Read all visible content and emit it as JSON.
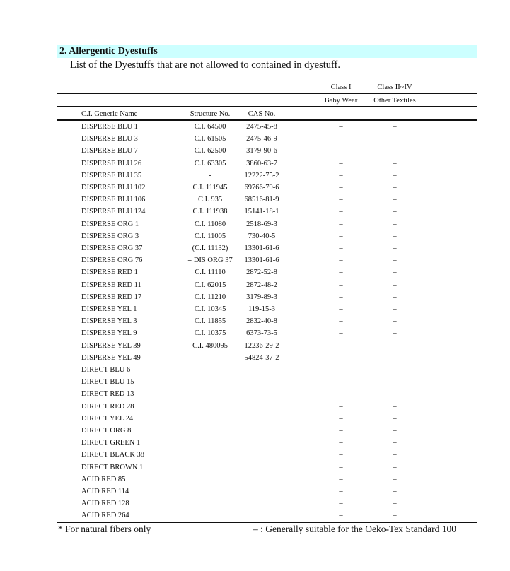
{
  "section": {
    "title": "2. Allergentic Dyestuffs",
    "intro": "List of the Dyestuffs that are not allowed to contained in dyestuff.",
    "band_color": "#ccffff"
  },
  "table": {
    "class_headers": [
      "Class I",
      "Class II~IV"
    ],
    "class_subheaders": [
      "Baby Wear",
      "Other Textiles"
    ],
    "columns": [
      "C.I. Generic Name",
      "Structure No.",
      "CAS No."
    ],
    "rows": [
      [
        "DISPERSE BLU 1",
        "C.I. 64500",
        "2475-45-8",
        "–",
        "–"
      ],
      [
        "DISPERSE BLU 3",
        "C.I. 61505",
        "2475-46-9",
        "–",
        "–"
      ],
      [
        "DISPERSE BLU 7",
        "C.I. 62500",
        "3179-90-6",
        "–",
        "–"
      ],
      [
        "DISPERSE BLU 26",
        "C.I. 63305",
        "3860-63-7",
        "–",
        "–"
      ],
      [
        "DISPERSE BLU 35",
        "-",
        "12222-75-2",
        "–",
        "–"
      ],
      [
        "DISPERSE BLU 102",
        "C.I. 111945",
        "69766-79-6",
        "–",
        "–"
      ],
      [
        "DISPERSE BLU 106",
        "C.I. 935",
        "68516-81-9",
        "–",
        "–"
      ],
      [
        "DISPERSE BLU 124",
        "C.I. 111938",
        "15141-18-1",
        "–",
        "–"
      ],
      [
        "DISPERSE ORG 1",
        "C.I. 11080",
        "2518-69-3",
        "–",
        "–"
      ],
      [
        "DISPERSE ORG 3",
        "C.I. 11005",
        "730-40-5",
        "–",
        "–"
      ],
      [
        "DISPERSE ORG 37",
        "(C.I. 11132)",
        "13301-61-6",
        "–",
        "–"
      ],
      [
        "DISPERSE ORG 76",
        "= DIS ORG 37",
        "13301-61-6",
        "–",
        "–"
      ],
      [
        "DISPERSE RED 1",
        "C.I. 11110",
        "2872-52-8",
        "–",
        "–"
      ],
      [
        "DISPERSE RED 11",
        "C.I. 62015",
        "2872-48-2",
        "–",
        "–"
      ],
      [
        "DISPERSE RED 17",
        "C.I. 11210",
        "3179-89-3",
        "–",
        "–"
      ],
      [
        "DISPERSE YEL 1",
        "C.I. 10345",
        "119-15-3",
        "–",
        "–"
      ],
      [
        "DISPERSE YEL 3",
        "C.I. 11855",
        "2832-40-8",
        "–",
        "–"
      ],
      [
        "DISPERSE YEL 9",
        "C.I. 10375",
        "6373-73-5",
        "–",
        "–"
      ],
      [
        "DISPERSE YEL 39",
        "C.I. 480095",
        "12236-29-2",
        "–",
        "–"
      ],
      [
        "DISPERSE YEL 49",
        "-",
        "54824-37-2",
        "–",
        "–"
      ],
      [
        "DIRECT BLU 6",
        "",
        "",
        "–",
        "–"
      ],
      [
        "DIRECT BLU 15",
        "",
        "",
        "–",
        "–"
      ],
      [
        "DIRECT RED 13",
        "",
        "",
        "–",
        "–"
      ],
      [
        "DIRECT RED 28",
        "",
        "",
        "–",
        "–"
      ],
      [
        "DIRECT YEL 24",
        "",
        "",
        "–",
        "–"
      ],
      [
        "DIRECT ORG 8",
        "",
        "",
        "–",
        "–"
      ],
      [
        "DIRECT GREEN 1",
        "",
        "",
        "–",
        "–"
      ],
      [
        "DIRECT BLACK 38",
        "",
        "",
        "–",
        "–"
      ],
      [
        "DIRECT BROWN 1",
        "",
        "",
        "–",
        "–"
      ],
      [
        "ACID RED 85",
        "",
        "",
        "–",
        "–"
      ],
      [
        "ACID RED 114",
        "",
        "",
        "–",
        "–"
      ],
      [
        "ACID RED 128",
        "",
        "",
        "–",
        "–"
      ],
      [
        "ACID RED 264",
        "",
        "",
        "–",
        "–"
      ]
    ]
  },
  "footer": {
    "note_left": "* For natural fibers only",
    "note_right": "– : Generally suitable for the Oeko-Tex Standard 100"
  }
}
